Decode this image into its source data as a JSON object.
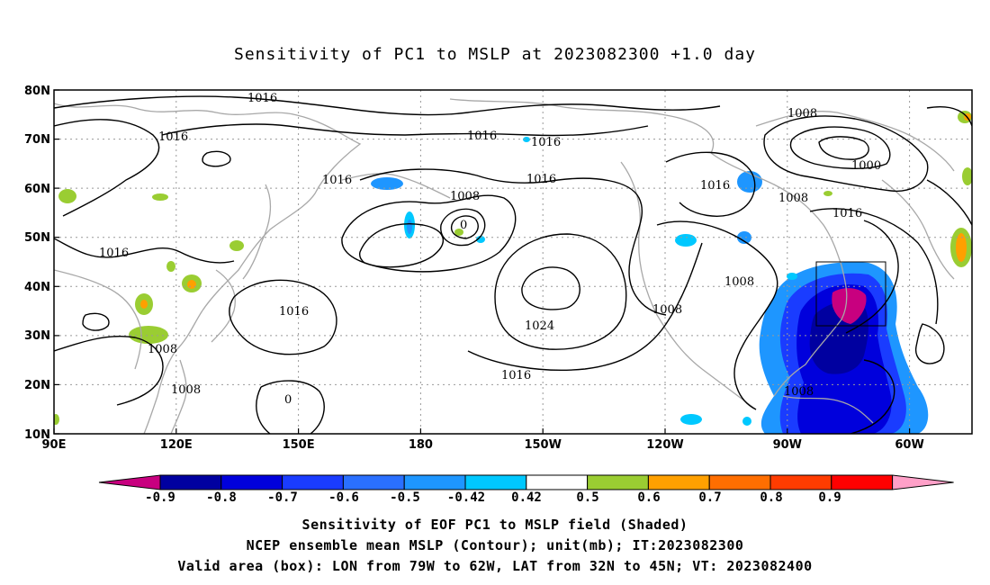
{
  "title": "Sensitivity of PC1 to MSLP at 2023082300 +1.0 day",
  "axes": {
    "lat_labels": [
      "80N",
      "70N",
      "60N",
      "50N",
      "40N",
      "30N",
      "20N",
      "10N"
    ],
    "lon_labels": [
      "90E",
      "120E",
      "150E",
      "180",
      "150W",
      "120W",
      "90W",
      "60W"
    ]
  },
  "contour_labels": [
    "1016",
    "1016",
    "1016",
    "1016",
    "1016",
    "1016",
    "1016",
    "1016",
    "1016",
    "1016",
    "1016",
    "1008",
    "1008",
    "1008",
    "1008",
    "1008",
    "1008",
    "1008",
    "1008",
    "1000",
    "1024",
    "0",
    "0"
  ],
  "valid_box": {
    "lon_from": "79W",
    "lon_to": "62W",
    "lat_from": "32N",
    "lat_to": "45N"
  },
  "colorbar": {
    "labels": [
      "-0.9",
      "-0.8",
      "-0.7",
      "-0.6",
      "-0.5",
      "-0.42",
      "0.42",
      "0.5",
      "0.6",
      "0.7",
      "0.8",
      "0.9"
    ],
    "colors": [
      "#c8007f",
      "#0000a0",
      "#0000dc",
      "#1a3cff",
      "#2a70ff",
      "#1e96ff",
      "#00c8ff",
      "#ffffff",
      "#9acd32",
      "#ffa000",
      "#ff6e00",
      "#ff3c00",
      "#ff0000",
      "#ffa0c8"
    ]
  },
  "footer": {
    "line1": "Sensitivity of EOF PC1 to MSLP field (Shaded)",
    "line2": "NCEP ensemble mean MSLP (Contour); unit(mb); IT:2023082300",
    "line3": "Valid area (box): LON from 79W to 62W, LAT from 32N to 45N; VT: 2023082400"
  }
}
